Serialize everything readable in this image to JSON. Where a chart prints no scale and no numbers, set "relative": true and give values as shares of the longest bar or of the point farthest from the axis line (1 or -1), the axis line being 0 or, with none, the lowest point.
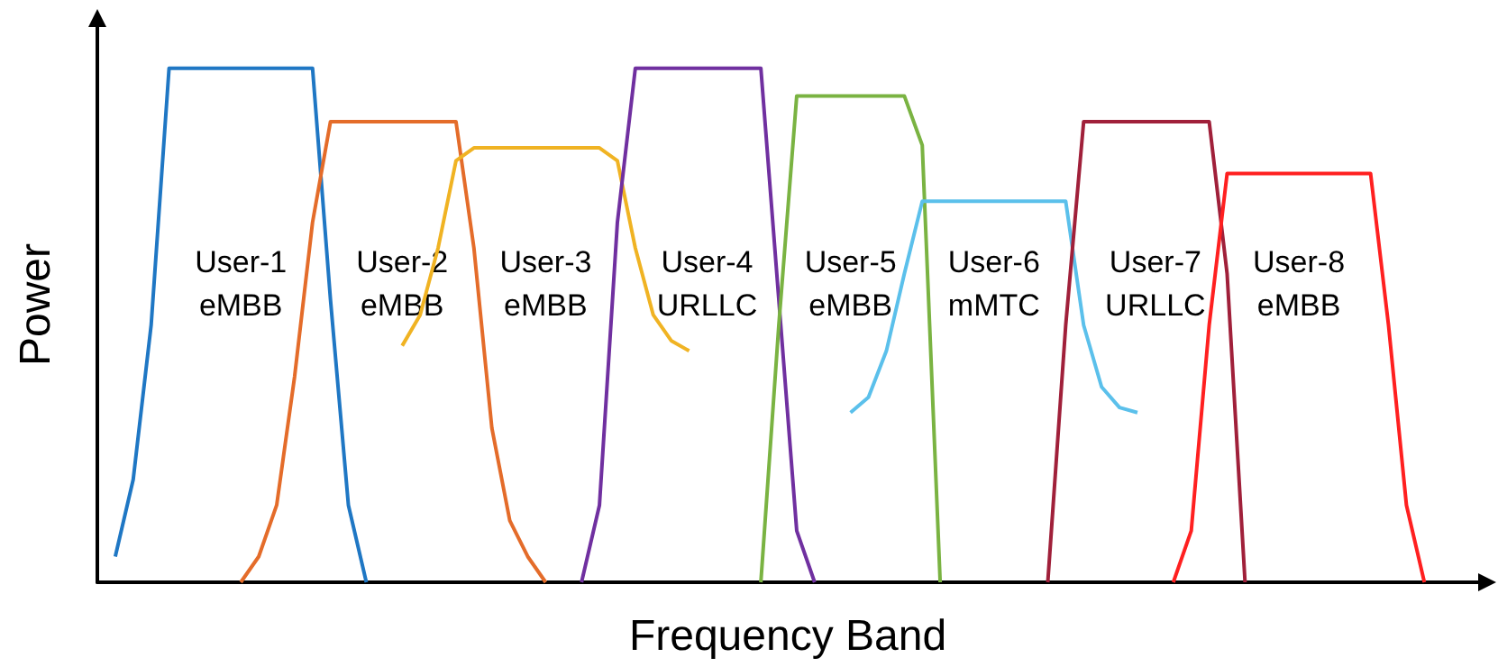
{
  "chart_data": {
    "type": "line",
    "relative": true,
    "xlabel": "Frequency Band",
    "ylabel": "Power",
    "grid": false,
    "marker": "none",
    "line_style": "solid",
    "categories": [
      null,
      null,
      null,
      null,
      null,
      null,
      null,
      null,
      null,
      null,
      null,
      null,
      null,
      null,
      null,
      null,
      null,
      null,
      null,
      null,
      null,
      null,
      null,
      null,
      null,
      null,
      null,
      null,
      null,
      null,
      null,
      null,
      null,
      null,
      null,
      null,
      null,
      null,
      null,
      null,
      null,
      null,
      null,
      null,
      null,
      null,
      null,
      null,
      null,
      null,
      null,
      null,
      null,
      null,
      null,
      null,
      null,
      null,
      null,
      null,
      null,
      null,
      null,
      null,
      null,
      null,
      null,
      null,
      null,
      null,
      null,
      null,
      null,
      null,
      null,
      null,
      null,
      null
    ],
    "series": [
      {
        "color": "#1f77c4",
        "values": [
          null,
          0.05,
          0.2,
          0.5,
          1,
          1,
          1,
          1,
          1,
          1,
          1,
          1,
          1,
          0.55,
          0.15,
          0,
          null,
          null,
          null,
          null,
          null,
          null,
          null,
          null,
          null,
          null,
          null,
          null,
          null,
          null,
          null,
          null,
          null,
          null,
          null,
          null,
          null,
          null,
          null,
          null,
          null,
          null,
          null,
          null,
          null,
          null,
          null,
          null,
          null,
          null,
          null,
          null,
          null,
          null,
          null,
          null,
          null,
          null,
          null,
          null,
          null,
          null,
          null,
          null,
          null,
          null,
          null,
          null,
          null,
          null,
          null,
          null,
          null,
          null,
          null,
          null,
          null,
          null
        ]
      },
      {
        "color": "#e46c2a",
        "values": [
          null,
          null,
          null,
          null,
          null,
          null,
          null,
          null,
          0,
          0.05,
          0.15,
          0.4,
          0.7,
          0.896,
          0.896,
          0.896,
          0.896,
          0.896,
          0.896,
          0.896,
          0.896,
          0.65,
          0.3,
          0.12,
          0.05,
          0,
          null,
          null,
          null,
          null,
          null,
          null,
          null,
          null,
          null,
          null,
          null,
          null,
          null,
          null,
          null,
          null,
          null,
          null,
          null,
          null,
          null,
          null,
          null,
          null,
          null,
          null,
          null,
          null,
          null,
          null,
          null,
          null,
          null,
          null,
          null,
          null,
          null,
          null,
          null,
          null,
          null,
          null,
          null,
          null,
          null,
          null,
          null,
          null,
          null,
          null,
          null,
          null
        ]
      },
      {
        "color": "#f0b323",
        "values": [
          null,
          null,
          null,
          null,
          null,
          null,
          null,
          null,
          null,
          null,
          null,
          null,
          null,
          null,
          null,
          null,
          null,
          0.46,
          0.52,
          0.65,
          0.82,
          0.845,
          0.845,
          0.845,
          0.845,
          0.845,
          0.845,
          0.845,
          0.845,
          0.82,
          0.65,
          0.52,
          0.47,
          0.45,
          null,
          null,
          null,
          null,
          null,
          null,
          null,
          null,
          null,
          null,
          null,
          null,
          null,
          null,
          null,
          null,
          null,
          null,
          null,
          null,
          null,
          null,
          null,
          null,
          null,
          null,
          null,
          null,
          null,
          null,
          null,
          null,
          null,
          null,
          null,
          null,
          null,
          null,
          null,
          null,
          null,
          null,
          null,
          null
        ]
      },
      {
        "color": "#7030a0",
        "values": [
          null,
          null,
          null,
          null,
          null,
          null,
          null,
          null,
          null,
          null,
          null,
          null,
          null,
          null,
          null,
          null,
          null,
          null,
          null,
          null,
          null,
          null,
          null,
          null,
          null,
          null,
          null,
          0,
          0.15,
          0.7,
          1,
          1,
          1,
          1,
          1,
          1,
          1,
          1,
          0.55,
          0.1,
          0,
          null,
          null,
          null,
          null,
          null,
          null,
          null,
          null,
          null,
          null,
          null,
          null,
          null,
          null,
          null,
          null,
          null,
          null,
          null,
          null,
          null,
          null,
          null,
          null,
          null,
          null,
          null,
          null,
          null,
          null,
          null,
          null,
          null,
          null,
          null,
          null,
          null
        ]
      },
      {
        "color": "#7ab342",
        "values": [
          null,
          null,
          null,
          null,
          null,
          null,
          null,
          null,
          null,
          null,
          null,
          null,
          null,
          null,
          null,
          null,
          null,
          null,
          null,
          null,
          null,
          null,
          null,
          null,
          null,
          null,
          null,
          null,
          null,
          null,
          null,
          null,
          null,
          null,
          null,
          null,
          null,
          0,
          0.5,
          0.946,
          0.946,
          0.946,
          0.946,
          0.946,
          0.946,
          0.946,
          0.85,
          0,
          null,
          null,
          null,
          null,
          null,
          null,
          null,
          null,
          null,
          null,
          null,
          null,
          null,
          null,
          null,
          null,
          null,
          null,
          null,
          null,
          null,
          null,
          null,
          null,
          null,
          null,
          null,
          null,
          null,
          null
        ]
      },
      {
        "color": "#5bc0eb",
        "values": [
          null,
          null,
          null,
          null,
          null,
          null,
          null,
          null,
          null,
          null,
          null,
          null,
          null,
          null,
          null,
          null,
          null,
          null,
          null,
          null,
          null,
          null,
          null,
          null,
          null,
          null,
          null,
          null,
          null,
          null,
          null,
          null,
          null,
          null,
          null,
          null,
          null,
          null,
          null,
          null,
          null,
          null,
          0.33,
          0.36,
          0.45,
          0.6,
          0.741,
          0.741,
          0.741,
          0.741,
          0.741,
          0.741,
          0.741,
          0.741,
          0.741,
          0.5,
          0.38,
          0.34,
          0.33,
          null,
          null,
          null,
          null,
          null,
          null,
          null,
          null,
          null,
          null,
          null,
          null,
          null,
          null,
          null,
          null,
          null,
          null,
          null
        ]
      },
      {
        "color": "#a0203a",
        "values": [
          null,
          null,
          null,
          null,
          null,
          null,
          null,
          null,
          null,
          null,
          null,
          null,
          null,
          null,
          null,
          null,
          null,
          null,
          null,
          null,
          null,
          null,
          null,
          null,
          null,
          null,
          null,
          null,
          null,
          null,
          null,
          null,
          null,
          null,
          null,
          null,
          null,
          null,
          null,
          null,
          null,
          null,
          null,
          null,
          null,
          null,
          null,
          null,
          null,
          null,
          null,
          null,
          null,
          0,
          0.5,
          0.896,
          0.896,
          0.896,
          0.896,
          0.896,
          0.896,
          0.896,
          0.896,
          0.6,
          0,
          null,
          null,
          null,
          null,
          null,
          null,
          null,
          null,
          null,
          null,
          null,
          null,
          null
        ]
      },
      {
        "color": "#ff2020",
        "values": [
          null,
          null,
          null,
          null,
          null,
          null,
          null,
          null,
          null,
          null,
          null,
          null,
          null,
          null,
          null,
          null,
          null,
          null,
          null,
          null,
          null,
          null,
          null,
          null,
          null,
          null,
          null,
          null,
          null,
          null,
          null,
          null,
          null,
          null,
          null,
          null,
          null,
          null,
          null,
          null,
          null,
          null,
          null,
          null,
          null,
          null,
          null,
          null,
          null,
          null,
          null,
          null,
          null,
          null,
          null,
          null,
          null,
          null,
          null,
          null,
          0,
          0.1,
          0.5,
          0.795,
          0.795,
          0.795,
          0.795,
          0.795,
          0.795,
          0.795,
          0.795,
          0.795,
          0.5,
          0.15,
          0,
          null,
          null,
          null
        ]
      }
    ],
    "annotations": [
      "User-1 eMBB",
      "User-2 eMBB",
      "User-3 eMBB",
      "User-4 URLLC",
      "User-5 eMBB",
      "User-6 mMTC",
      "User-7 URLLC",
      "User-8 eMBB"
    ]
  }
}
